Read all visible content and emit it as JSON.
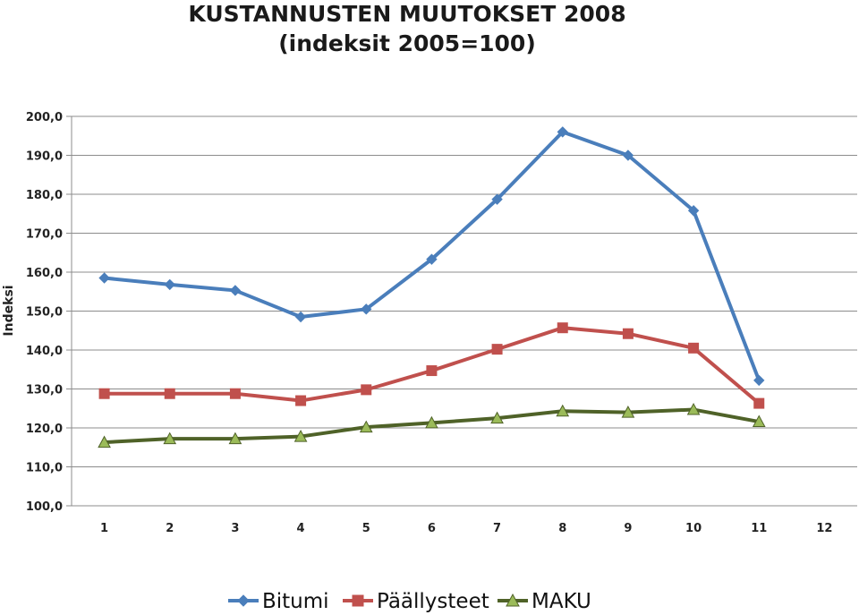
{
  "chart_data": {
    "type": "line",
    "title": "KUSTANNUSTEN MUUTOKSET 2008",
    "subtitle": "(indeksit 2005=100)",
    "ylabel": "Indeksi",
    "xlabel": "",
    "categories": [
      "1",
      "2",
      "3",
      "4",
      "5",
      "6",
      "7",
      "8",
      "9",
      "10",
      "11",
      "12"
    ],
    "yticks": [
      "100,0",
      "110,0",
      "120,0",
      "130,0",
      "140,0",
      "150,0",
      "160,0",
      "170,0",
      "180,0",
      "190,0",
      "200,0"
    ],
    "ylim": [
      100,
      200
    ],
    "grid": true,
    "legend_position": "bottom",
    "series": [
      {
        "name": "Bitumi",
        "color": "#4a7ebb",
        "marker": "diamond",
        "values": [
          158.5,
          156.8,
          155.3,
          148.5,
          150.5,
          163.3,
          178.7,
          196.0,
          190.0,
          175.8,
          132.2,
          null
        ]
      },
      {
        "name": "Päällysteet",
        "color": "#c0504d",
        "marker": "square",
        "values": [
          128.8,
          128.8,
          128.8,
          127.0,
          129.8,
          134.7,
          140.2,
          145.7,
          144.2,
          140.5,
          126.3,
          null
        ]
      },
      {
        "name": "MAKU",
        "color": "#9bbb59",
        "lineColor": "#4f6228",
        "marker": "triangle",
        "values": [
          116.3,
          117.2,
          117.2,
          117.8,
          120.2,
          121.3,
          122.5,
          124.3,
          124.0,
          124.7,
          121.6,
          null
        ]
      }
    ]
  }
}
